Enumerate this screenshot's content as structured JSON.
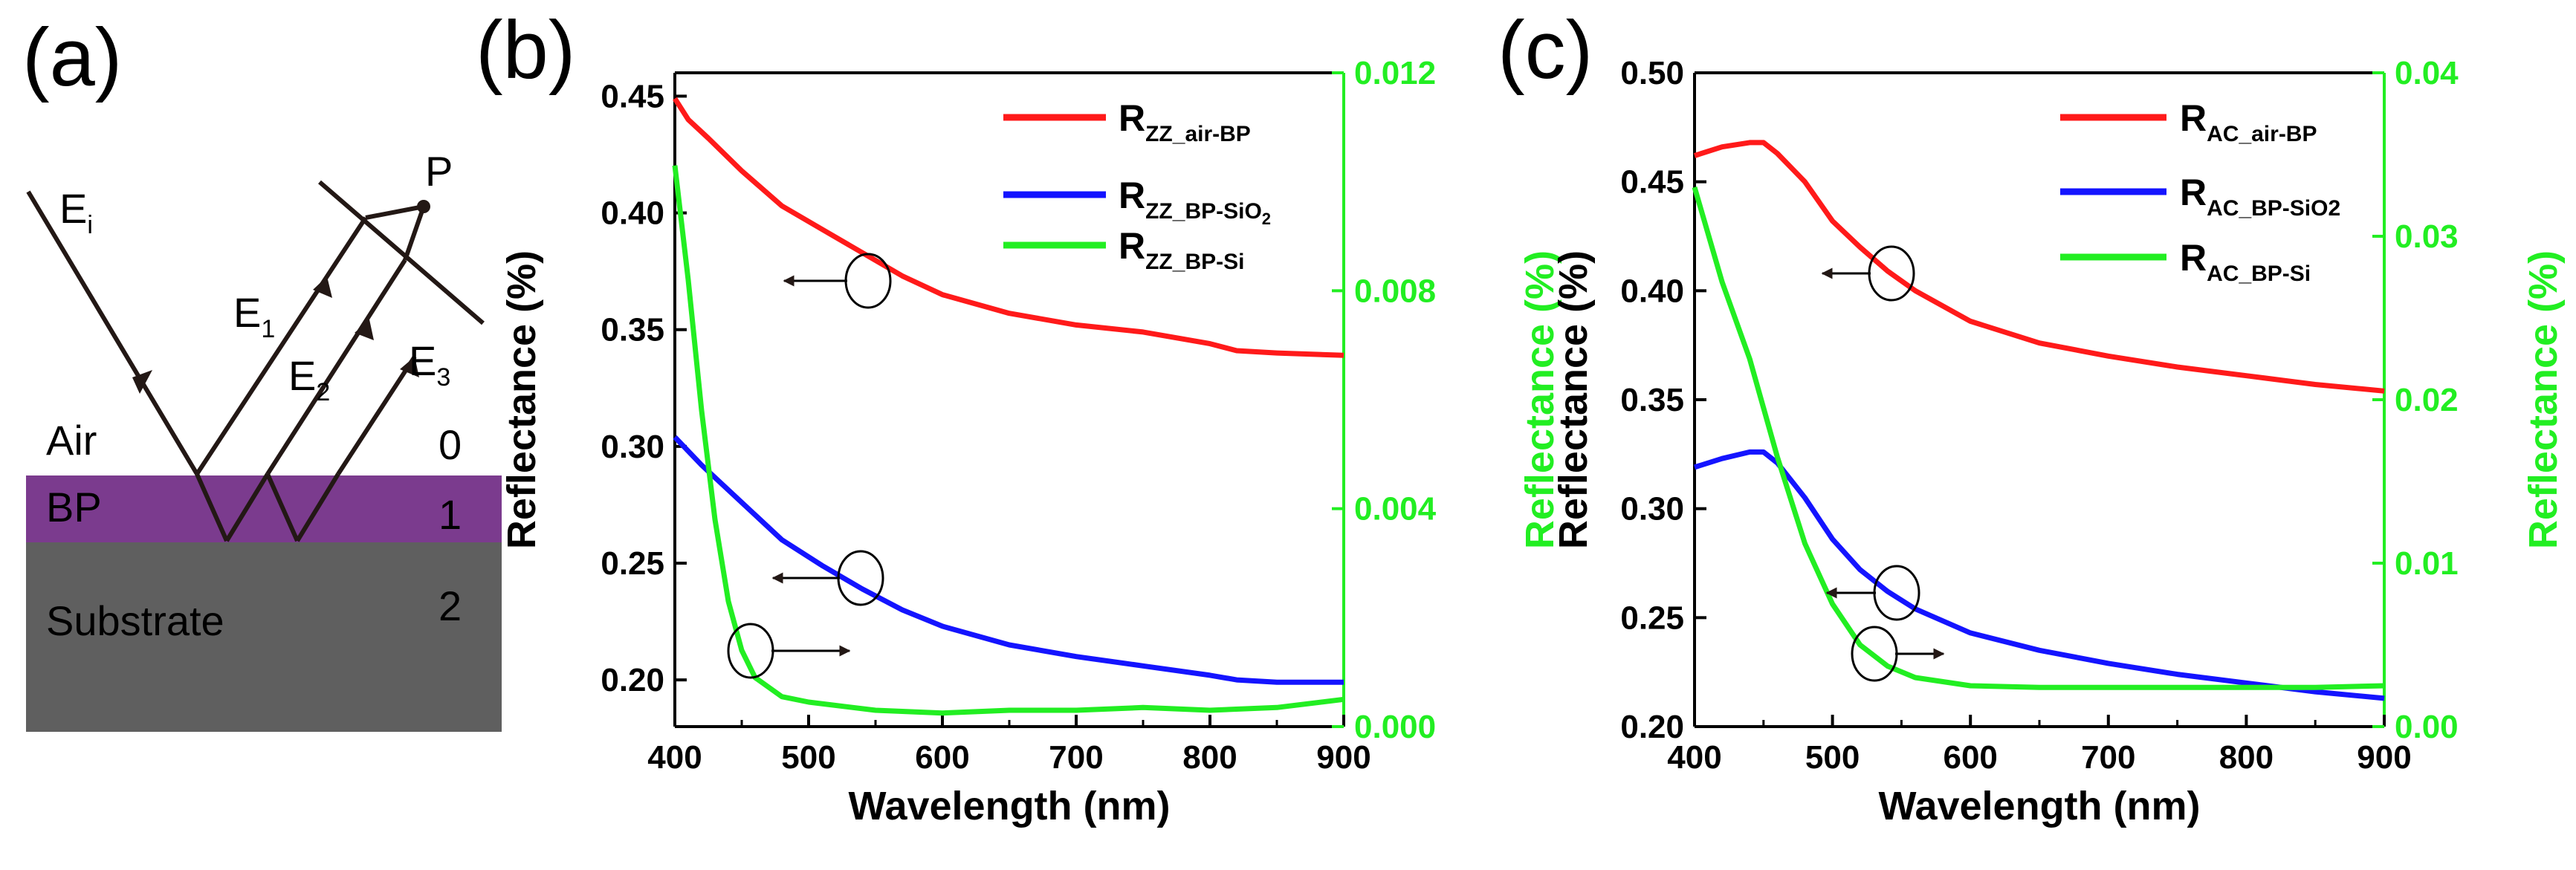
{
  "figure": {
    "panel_a": {
      "letter": "(a)",
      "labels": {
        "ei": "E",
        "ei_sub": "i",
        "e1": "E",
        "e1_sub": "1",
        "e2": "E",
        "e2_sub": "2",
        "e3": "E",
        "e3_sub": "3",
        "p": "P",
        "air": "Air",
        "air_index": "0",
        "bp": "BP",
        "bp_index": "1",
        "substrate": "Substrate",
        "substrate_index": "2"
      },
      "colors": {
        "bp_layer": "#7B3B8E",
        "substrate_layer": "#5F5F5F",
        "rays": "#231815"
      }
    },
    "panel_b": {
      "letter": "(b)"
    },
    "panel_c": {
      "letter": "(c)"
    }
  },
  "chart_data": [
    {
      "type": "line",
      "panel": "b",
      "xlabel": "Wavelength (nm)",
      "ylabel_left": "Reflectance (%)",
      "ylabel_right": "Reflectance (%)",
      "xlim": [
        400,
        900
      ],
      "ylim_left": [
        0.18,
        0.46
      ],
      "ylim_right": [
        0,
        0.012
      ],
      "xticks": [
        "400",
        "500",
        "600",
        "700",
        "800",
        "900"
      ],
      "yticks_left": [
        "0.20",
        "0.25",
        "0.30",
        "0.35",
        "0.40",
        "0.45"
      ],
      "yticks_right": [
        "0.000",
        "0.004",
        "0.008",
        "0.012"
      ],
      "colors": {
        "left_axis": "#000000",
        "right_axis": "#22EE22"
      },
      "series": [
        {
          "name": "R",
          "subscript": "ZZ_air-BP",
          "sub2": "",
          "color": "#FF1A1A",
          "axis": "left",
          "x": [
            400,
            410,
            425,
            450,
            480,
            510,
            540,
            570,
            600,
            650,
            700,
            750,
            800,
            820,
            850,
            900
          ],
          "y": [
            0.449,
            0.44,
            0.432,
            0.418,
            0.403,
            0.393,
            0.383,
            0.373,
            0.365,
            0.357,
            0.352,
            0.349,
            0.344,
            0.341,
            0.34,
            0.339
          ]
        },
        {
          "name": "R",
          "subscript": "ZZ_BP-SiO",
          "sub2": "2",
          "color": "#1414FF",
          "axis": "left",
          "x": [
            400,
            420,
            450,
            480,
            510,
            540,
            570,
            600,
            650,
            700,
            750,
            800,
            820,
            850,
            900
          ],
          "y": [
            0.304,
            0.292,
            0.276,
            0.26,
            0.249,
            0.239,
            0.23,
            0.223,
            0.215,
            0.21,
            0.206,
            0.202,
            0.2,
            0.199,
            0.199
          ]
        },
        {
          "name": "R",
          "subscript": "ZZ_BP-Si",
          "sub2": "",
          "color": "#22EE22",
          "axis": "right",
          "x": [
            400,
            410,
            420,
            430,
            440,
            450,
            460,
            480,
            500,
            550,
            600,
            650,
            700,
            750,
            800,
            850,
            900
          ],
          "y": [
            0.0103,
            0.0082,
            0.0058,
            0.0038,
            0.0023,
            0.0014,
            0.0009,
            0.00055,
            0.00045,
            0.0003,
            0.00025,
            0.0003,
            0.0003,
            0.00035,
            0.0003,
            0.00035,
            0.0005
          ]
        }
      ]
    },
    {
      "type": "line",
      "panel": "c",
      "xlabel": "Wavelength (nm)",
      "ylabel_left": "Reflectance (%)",
      "ylabel_right": "Reflectance (%)",
      "ylabel_right_outer": "Reflectance (%)",
      "xlim": [
        400,
        900
      ],
      "ylim_left": [
        0.2,
        0.5
      ],
      "ylim_right": [
        0,
        0.04
      ],
      "xticks": [
        "400",
        "500",
        "600",
        "700",
        "800",
        "900"
      ],
      "yticks_left": [
        "0.20",
        "0.25",
        "0.30",
        "0.35",
        "0.40",
        "0.45",
        "0.50"
      ],
      "yticks_right": [
        "0.00",
        "0.01",
        "0.02",
        "0.03",
        "0.04"
      ],
      "colors": {
        "left_axis": "#000000",
        "right_axis": "#22EE22"
      },
      "series": [
        {
          "name": "R",
          "subscript": "AC_air-BP",
          "color": "#FF1A1A",
          "axis": "left",
          "x": [
            400,
            420,
            440,
            450,
            460,
            480,
            500,
            520,
            540,
            560,
            600,
            650,
            700,
            750,
            800,
            850,
            900
          ],
          "y": [
            0.462,
            0.466,
            0.468,
            0.468,
            0.463,
            0.45,
            0.432,
            0.42,
            0.409,
            0.4,
            0.386,
            0.376,
            0.37,
            0.365,
            0.361,
            0.357,
            0.354
          ]
        },
        {
          "name": "R",
          "subscript": "AC_BP-SiO2",
          "color": "#1414FF",
          "axis": "left",
          "x": [
            400,
            420,
            440,
            450,
            460,
            480,
            500,
            520,
            540,
            560,
            600,
            650,
            700,
            750,
            800,
            850,
            900
          ],
          "y": [
            0.319,
            0.323,
            0.326,
            0.326,
            0.321,
            0.305,
            0.286,
            0.272,
            0.262,
            0.254,
            0.243,
            0.235,
            0.229,
            0.224,
            0.22,
            0.216,
            0.213
          ]
        },
        {
          "name": "R",
          "subscript": "AC_BP-Si",
          "color": "#22EE22",
          "axis": "right",
          "x": [
            400,
            420,
            440,
            450,
            460,
            480,
            500,
            520,
            540,
            560,
            600,
            650,
            700,
            750,
            800,
            850,
            900
          ],
          "y": [
            0.033,
            0.0272,
            0.0225,
            0.0195,
            0.0165,
            0.0112,
            0.0075,
            0.005,
            0.0037,
            0.003,
            0.0025,
            0.0024,
            0.0024,
            0.0024,
            0.0024,
            0.0024,
            0.0025
          ]
        }
      ]
    }
  ]
}
